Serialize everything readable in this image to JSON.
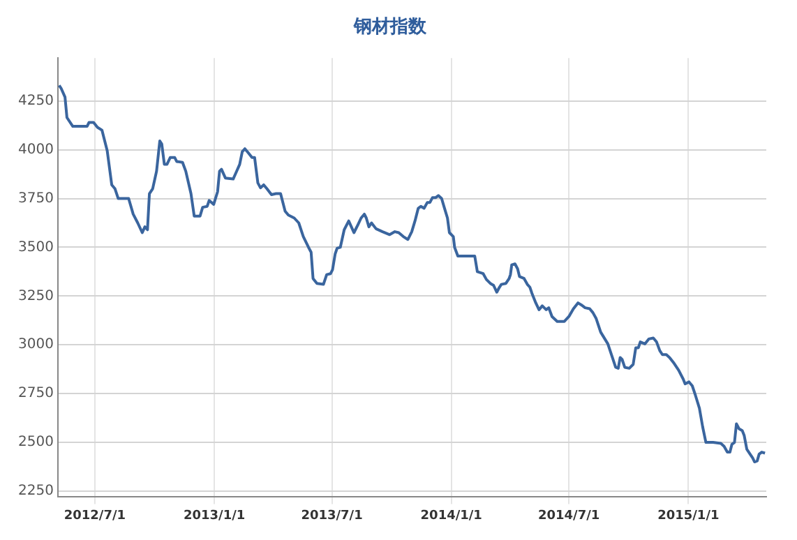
{
  "chart_data": {
    "type": "line",
    "title": "钢材指数",
    "x": [
      "2012-05-07",
      "2012-05-10",
      "2012-05-16",
      "2012-05-19",
      "2012-05-28",
      "2012-06-19",
      "2012-06-22",
      "2012-06-29",
      "2012-07-05",
      "2012-07-12",
      "2012-07-15",
      "2012-07-20",
      "2012-07-27",
      "2012-08-01",
      "2012-08-06",
      "2012-08-22",
      "2012-08-29",
      "2012-09-05",
      "2012-09-12",
      "2012-09-16",
      "2012-09-20",
      "2012-09-23",
      "2012-09-28",
      "2012-10-04",
      "2012-10-09",
      "2012-10-12",
      "2012-10-16",
      "2012-10-20",
      "2012-10-25",
      "2012-11-01",
      "2012-11-04",
      "2012-11-13",
      "2012-11-18",
      "2012-11-26",
      "2012-12-01",
      "2012-12-10",
      "2012-12-14",
      "2012-12-21",
      "2012-12-24",
      "2012-12-31",
      "2013-01-06",
      "2013-01-09",
      "2013-01-12",
      "2013-01-18",
      "2013-01-30",
      "2013-02-03",
      "2013-02-09",
      "2013-02-13",
      "2013-02-17",
      "2013-02-22",
      "2013-02-28",
      "2013-03-04",
      "2013-03-09",
      "2013-03-13",
      "2013-03-18",
      "2013-03-23",
      "2013-03-30",
      "2013-04-06",
      "2013-04-13",
      "2013-04-20",
      "2013-04-25",
      "2013-05-04",
      "2013-05-11",
      "2013-05-18",
      "2013-05-26",
      "2013-05-30",
      "2013-06-02",
      "2013-06-08",
      "2013-06-18",
      "2013-06-23",
      "2013-06-29",
      "2013-07-02",
      "2013-07-06",
      "2013-07-09",
      "2013-07-14",
      "2013-07-20",
      "2013-07-27",
      "2013-07-31",
      "2013-08-04",
      "2013-08-10",
      "2013-08-15",
      "2013-08-20",
      "2013-08-23",
      "2013-08-27",
      "2013-08-31",
      "2013-09-07",
      "2013-09-17",
      "2013-09-28",
      "2013-10-06",
      "2013-10-12",
      "2013-10-19",
      "2013-10-26",
      "2013-11-01",
      "2013-11-06",
      "2013-11-11",
      "2013-11-15",
      "2013-11-20",
      "2013-11-25",
      "2013-11-29",
      "2013-12-03",
      "2013-12-08",
      "2013-12-12",
      "2013-12-17",
      "2013-12-21",
      "2013-12-26",
      "2013-12-29",
      "2014-01-04",
      "2014-01-06",
      "2014-01-11",
      "2014-02-02",
      "2014-02-06",
      "2014-02-10",
      "2014-02-19",
      "2014-02-24",
      "2014-03-02",
      "2014-03-07",
      "2014-03-12",
      "2014-03-16",
      "2014-03-19",
      "2014-03-26",
      "2014-03-31",
      "2014-04-02",
      "2014-04-04",
      "2014-04-09",
      "2014-04-13",
      "2014-04-16",
      "2014-04-23",
      "2014-04-28",
      "2014-05-02",
      "2014-05-05",
      "2014-05-11",
      "2014-05-16",
      "2014-05-21",
      "2014-05-27",
      "2014-05-31",
      "2014-06-05",
      "2014-06-13",
      "2014-06-24",
      "2014-07-01",
      "2014-07-08",
      "2014-07-15",
      "2014-07-20",
      "2014-07-26",
      "2014-08-02",
      "2014-08-07",
      "2014-08-12",
      "2014-08-19",
      "2014-08-30",
      "2014-09-06",
      "2014-09-11",
      "2014-09-15",
      "2014-09-18",
      "2014-09-21",
      "2014-09-25",
      "2014-10-02",
      "2014-10-08",
      "2014-10-12",
      "2014-10-16",
      "2014-10-19",
      "2014-10-26",
      "2014-11-01",
      "2014-11-08",
      "2014-11-13",
      "2014-11-18",
      "2014-11-22",
      "2014-11-28",
      "2014-12-03",
      "2014-12-10",
      "2014-12-17",
      "2014-12-24",
      "2014-12-27",
      "2015-01-02",
      "2015-01-07",
      "2015-01-12",
      "2015-01-18",
      "2015-01-23",
      "2015-01-28",
      "2015-02-08",
      "2015-02-20",
      "2015-02-25",
      "2015-03-02",
      "2015-03-06",
      "2015-03-09",
      "2015-03-13",
      "2015-03-16",
      "2015-03-20",
      "2015-03-25",
      "2015-03-28",
      "2015-04-01",
      "2015-04-06",
      "2015-04-10",
      "2015-04-13",
      "2015-04-17",
      "2015-04-20",
      "2015-04-24",
      "2015-04-29"
    ],
    "series": [
      {
        "color": "#3a659e",
        "values": [
          4330,
          4315,
          4270,
          4165,
          4120,
          4120,
          4140,
          4140,
          4115,
          4100,
          4060,
          3995,
          3820,
          3800,
          3750,
          3750,
          3670,
          3625,
          3575,
          3605,
          3590,
          3775,
          3800,
          3890,
          4045,
          4030,
          3925,
          3925,
          3960,
          3960,
          3940,
          3935,
          3890,
          3775,
          3660,
          3660,
          3705,
          3710,
          3740,
          3720,
          3785,
          3890,
          3900,
          3855,
          3850,
          3880,
          3925,
          3990,
          4005,
          3985,
          3960,
          3960,
          3830,
          3805,
          3820,
          3800,
          3770,
          3775,
          3775,
          3685,
          3665,
          3650,
          3625,
          3555,
          3500,
          3475,
          3340,
          3315,
          3310,
          3360,
          3365,
          3385,
          3465,
          3495,
          3500,
          3590,
          3635,
          3605,
          3575,
          3615,
          3650,
          3670,
          3650,
          3605,
          3625,
          3595,
          3580,
          3565,
          3580,
          3575,
          3555,
          3540,
          3580,
          3635,
          3700,
          3710,
          3700,
          3730,
          3730,
          3755,
          3755,
          3765,
          3750,
          3705,
          3650,
          3575,
          3555,
          3500,
          3455,
          3455,
          3455,
          3375,
          3365,
          3335,
          3315,
          3305,
          3270,
          3295,
          3310,
          3315,
          3340,
          3360,
          3410,
          3415,
          3390,
          3350,
          3340,
          3310,
          3295,
          3265,
          3215,
          3180,
          3200,
          3180,
          3190,
          3145,
          3120,
          3120,
          3145,
          3185,
          3215,
          3205,
          3190,
          3185,
          3165,
          3135,
          3065,
          3005,
          2935,
          2885,
          2880,
          2935,
          2925,
          2885,
          2880,
          2900,
          2985,
          2985,
          3015,
          3005,
          3030,
          3035,
          3015,
          2970,
          2950,
          2950,
          2935,
          2905,
          2870,
          2825,
          2800,
          2810,
          2790,
          2740,
          2675,
          2580,
          2500,
          2500,
          2495,
          2480,
          2450,
          2450,
          2490,
          2500,
          2595,
          2570,
          2560,
          2535,
          2465,
          2440,
          2420,
          2400,
          2405,
          2440,
          2450,
          2445
        ]
      }
    ],
    "xlim": [
      "2012-05-05",
      "2015-05-01"
    ],
    "xticks": [
      {
        "value": "2012-07-01",
        "label": "2012/7/1"
      },
      {
        "value": "2013-01-01",
        "label": "2013/1/1"
      },
      {
        "value": "2013-07-01",
        "label": "2013/7/1"
      },
      {
        "value": "2014-01-01",
        "label": "2014/1/1"
      },
      {
        "value": "2014-07-01",
        "label": "2014/7/1"
      },
      {
        "value": "2015-01-01",
        "label": "2015/1/1"
      }
    ],
    "ylim": [
      2220,
      4470
    ],
    "yticks": [
      2250,
      2500,
      2750,
      3000,
      3250,
      3500,
      3750,
      4000,
      4250
    ],
    "grid": true,
    "legend": false,
    "marker": "none",
    "line_style": "solid"
  }
}
